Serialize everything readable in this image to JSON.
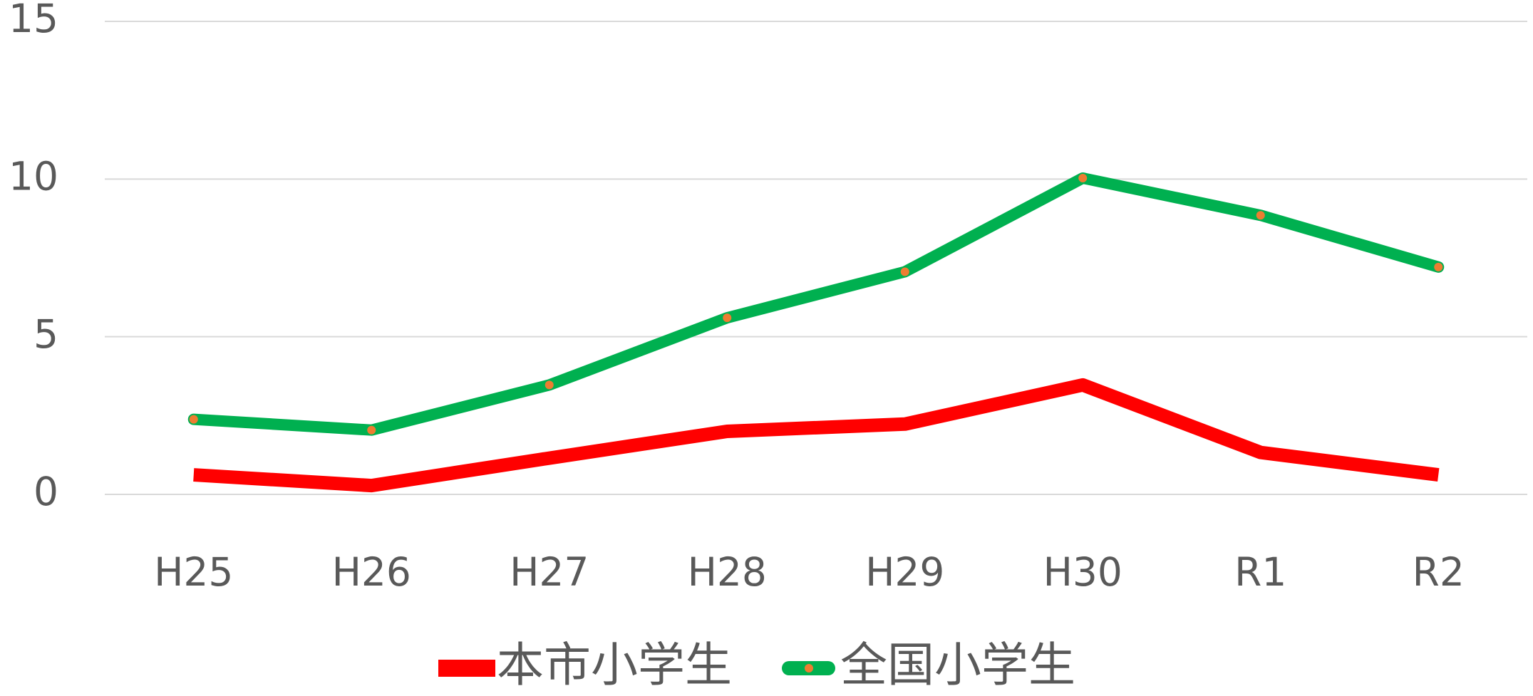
{
  "chart_data": {
    "type": "line",
    "categories": [
      "H25",
      "H26",
      "H27",
      "H28",
      "H29",
      "H30",
      "R1",
      "R2"
    ],
    "series": [
      {
        "name": "本市小学生",
        "color": "#ff0000",
        "values": [
          0.62,
          0.28,
          1.15,
          2.0,
          2.23,
          3.47,
          1.33,
          0.62
        ]
      },
      {
        "name": "全国小学生",
        "color": "#00b050",
        "marker_color": "#ed7d31",
        "values": [
          2.38,
          2.04,
          3.47,
          5.6,
          7.06,
          10.03,
          8.85,
          7.21
        ]
      }
    ],
    "ylim": [
      0,
      15
    ],
    "yticks": [
      0,
      5,
      10,
      15
    ],
    "grid": true,
    "legend": "bottom"
  }
}
